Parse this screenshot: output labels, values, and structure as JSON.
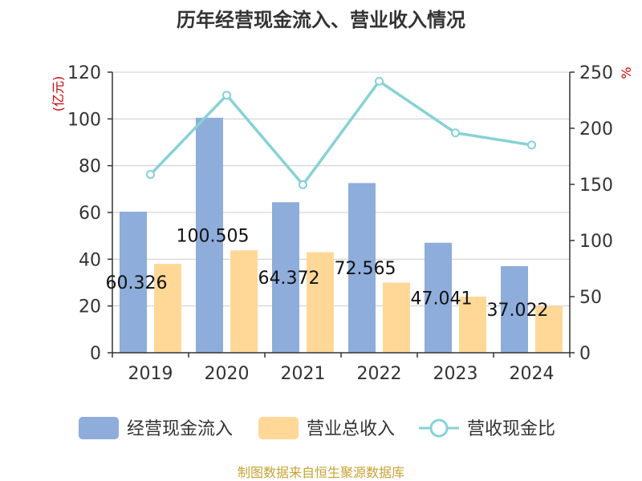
{
  "title": "历年经营现金流入、营业收入情况",
  "left_unit": "(亿元)",
  "right_unit": "%",
  "source": "制图数据来自恒生聚源数据库",
  "colors": {
    "cash_inflow": "#8eaddb",
    "revenue": "#ffd898",
    "ratio": "#86d2d6",
    "axis": "#333333",
    "grid": "#cccccc"
  },
  "chart_data": {
    "type": "bar",
    "title": "历年经营现金流入、营业收入情况",
    "categories": [
      "2019",
      "2020",
      "2021",
      "2022",
      "2023",
      "2024"
    ],
    "ylim": [
      0,
      120
    ],
    "yticks": [
      "0",
      "20",
      "40",
      "60",
      "80",
      "100",
      "120"
    ],
    "y2lim": [
      0,
      250
    ],
    "y2ticks": [
      "0",
      "50",
      "100",
      "150",
      "200",
      "250"
    ],
    "grid": true,
    "legend_position": "bottom",
    "series": [
      {
        "name": "经营现金流入",
        "type": "bar",
        "axis": "left",
        "values": [
          60.326,
          100.505,
          64.372,
          72.565,
          47.041,
          37.022
        ],
        "labels": [
          "60.326",
          "100.505",
          "64.372",
          "72.565",
          "47.041",
          "37.022"
        ]
      },
      {
        "name": "营业总收入",
        "type": "bar",
        "axis": "left",
        "values": [
          38.0,
          43.8,
          43.0,
          30.0,
          24.0,
          20.0
        ]
      },
      {
        "name": "营收现金比",
        "type": "line",
        "axis": "right",
        "values": [
          158.8,
          229.5,
          149.7,
          241.9,
          195.9,
          185.1
        ]
      }
    ]
  }
}
